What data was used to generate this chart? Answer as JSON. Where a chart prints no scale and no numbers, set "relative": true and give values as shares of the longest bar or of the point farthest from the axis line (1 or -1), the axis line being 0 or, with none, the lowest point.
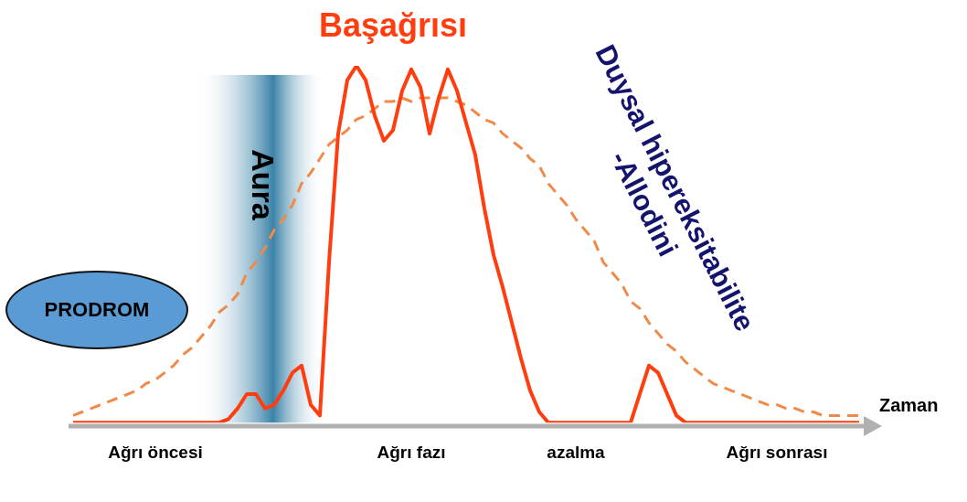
{
  "chart_data": {
    "type": "line",
    "relative": true,
    "marker": "none",
    "legend": false,
    "grid": false,
    "xlabel": "Zaman",
    "categories": [
      null,
      null,
      null,
      null,
      null,
      null,
      null,
      null,
      null,
      "Ağrı öncesi",
      null,
      null,
      null,
      null,
      null,
      null,
      null,
      null,
      null,
      null,
      null,
      null,
      null,
      null,
      null,
      null,
      null,
      null,
      null,
      null,
      null,
      null,
      null,
      null,
      null,
      null,
      null,
      "Ağrı fazı",
      null,
      null,
      null,
      null,
      null,
      null,
      null,
      null,
      null,
      null,
      null,
      null,
      null,
      null,
      null,
      null,
      null,
      "azalma",
      null,
      null,
      null,
      null,
      null,
      null,
      null,
      null,
      null,
      null,
      null,
      null,
      null,
      null,
      null,
      null,
      null,
      null,
      null,
      null,
      null,
      "Ağrı sonrası",
      null,
      null,
      null,
      null,
      null,
      null,
      null,
      null,
      null
    ],
    "series": [
      {
        "name": "Başağrısı",
        "color": "#ff3d0f",
        "line_style": "solid",
        "values": [
          0,
          0,
          0,
          0,
          0,
          0,
          0,
          0,
          0,
          0,
          0,
          0,
          0,
          0,
          0,
          0,
          0,
          0.01,
          0.04,
          0.08,
          0.08,
          0.04,
          0.05,
          0.09,
          0.14,
          0.16,
          0.05,
          0.02,
          0.45,
          0.81,
          0.96,
          1,
          0.96,
          0.86,
          0.79,
          0.82,
          0.93,
          0.99,
          0.94,
          0.81,
          0.91,
          0.99,
          0.93,
          0.84,
          0.75,
          0.6,
          0.47,
          0.38,
          0.28,
          0.18,
          0.09,
          0.03,
          0,
          0,
          0,
          0,
          0,
          0,
          0,
          0,
          0,
          0,
          0.08,
          0.16,
          0.14,
          0.08,
          0.02,
          0,
          0,
          0,
          0,
          0,
          0,
          0,
          0,
          0,
          0,
          0,
          0,
          0,
          0,
          0,
          0,
          0,
          0,
          0,
          0
        ]
      },
      {
        "name": "Duysal hipereksitabilite -Allodini",
        "color": "#f08a4b",
        "line_style": "dashed",
        "values": [
          0.02,
          0.03,
          0.04,
          0.05,
          0.06,
          0.07,
          0.08,
          0.09,
          0.11,
          0.12,
          0.14,
          0.16,
          0.19,
          0.21,
          0.24,
          0.27,
          0.31,
          0.33,
          0.36,
          0.42,
          0.45,
          0.49,
          0.54,
          0.57,
          0.61,
          0.67,
          0.7,
          0.74,
          0.78,
          0.8,
          0.82,
          0.85,
          0.86,
          0.88,
          0.9,
          0.9,
          0.91,
          0.9,
          0.91,
          0.91,
          0.91,
          0.91,
          0.9,
          0.89,
          0.87,
          0.85,
          0.84,
          0.81,
          0.79,
          0.77,
          0.74,
          0.72,
          0.67,
          0.64,
          0.61,
          0.57,
          0.54,
          0.51,
          0.45,
          0.42,
          0.39,
          0.34,
          0.32,
          0.28,
          0.25,
          0.22,
          0.2,
          0.17,
          0.15,
          0.13,
          0.11,
          0.1,
          0.09,
          0.08,
          0.07,
          0.06,
          0.05,
          0.05,
          0.04,
          0.04,
          0.03,
          0.03,
          0.02,
          0.02,
          0.02,
          0.02,
          0.02
        ]
      }
    ],
    "annotations": [
      "PRODROM",
      "Aura"
    ]
  }
}
